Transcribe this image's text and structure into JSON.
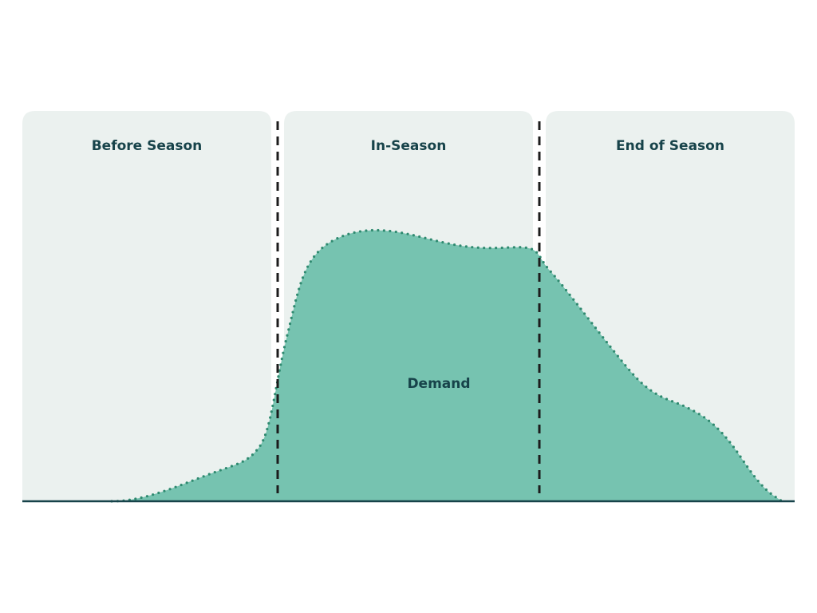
{
  "panels": [
    {
      "label": "Before Season"
    },
    {
      "label": "In-Season"
    },
    {
      "label": "End of Season"
    }
  ],
  "area": {
    "label": "Demand"
  }
}
